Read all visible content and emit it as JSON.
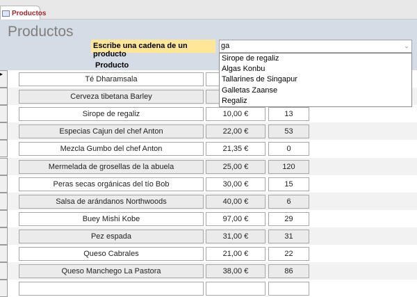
{
  "tab": {
    "label": "Productos",
    "icon": "form-icon"
  },
  "form": {
    "title": "Productos",
    "prompt": "Escribe una cadena de un producto",
    "search_value": "ga",
    "column_header": "Producto"
  },
  "dropdown": [
    "Sirope de regaliz",
    "Algas Konbu",
    "Tallarines de Singapur",
    "Galletas Zaanse",
    "Regaliz"
  ],
  "rows": [
    {
      "name": "Té Dharamsala",
      "price": "",
      "stock": ""
    },
    {
      "name": "Cerveza tibetana Barley",
      "price": "",
      "stock": ""
    },
    {
      "name": "Sirope de regaliz",
      "price": "10,00 €",
      "stock": "13"
    },
    {
      "name": "Especias Cajun del chef Anton",
      "price": "22,00 €",
      "stock": "53"
    },
    {
      "name": "Mezcla Gumbo del chef Anton",
      "price": "21,35 €",
      "stock": "0"
    },
    {
      "name": "Mermelada de grosellas de la abuela",
      "price": "25,00 €",
      "stock": "120"
    },
    {
      "name": "Peras secas orgánicas del tío Bob",
      "price": "30,00 €",
      "stock": "15"
    },
    {
      "name": "Salsa de arándanos Northwoods",
      "price": "40,00 €",
      "stock": "6"
    },
    {
      "name": "Buey Mishi Kobe",
      "price": "97,00 €",
      "stock": "29"
    },
    {
      "name": "Pez espada",
      "price": "31,00 €",
      "stock": "31"
    },
    {
      "name": "Queso Cabrales",
      "price": "21,00 €",
      "stock": "22"
    },
    {
      "name": "Queso Manchego La Pastora",
      "price": "38,00 €",
      "stock": "86"
    },
    {
      "name": "",
      "price": "",
      "stock": ""
    }
  ]
}
